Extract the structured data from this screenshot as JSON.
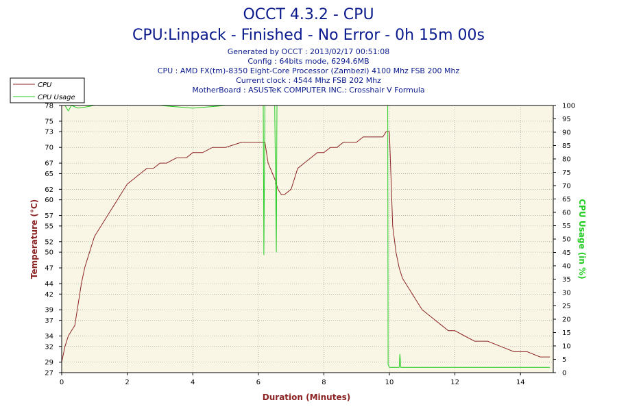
{
  "title": "OCCT 4.3.2 - CPU",
  "subtitle": "CPU:Linpack - Finished - No Error - 0h 15m 00s",
  "info_lines": [
    "Generated by OCCT : 2013/02/17 00:51:08",
    "Config : 64bits mode, 6294.6MB",
    "CPU : AMD FX(tm)-8350 Eight-Core Processor (Zambezi) 4100 Mhz FSB 200 Mhz",
    "Current clock : 4544 Mhz FSB 202 Mhz",
    "MotherBoard : ASUSTeK COMPUTER INC.: Crosshair V Formula"
  ],
  "colors": {
    "title": "#0a1a8c",
    "plot_background": "#faf6e6",
    "temperature": "#8b2323",
    "cpu_usage": "#22cc22",
    "grid": "#909090"
  },
  "chart_data": {
    "type": "line",
    "xlabel": "Duration (Minutes)",
    "ylabel": "Temperature (°C)",
    "y2label": "CPU Usage (in %)",
    "xlim": [
      0,
      15
    ],
    "ylim": [
      27,
      78
    ],
    "y2lim": [
      0,
      100
    ],
    "x_ticks": [
      0,
      2,
      4,
      6,
      8,
      10,
      12,
      14
    ],
    "y_ticks": [
      27,
      29,
      32,
      34,
      37,
      39,
      42,
      44,
      47,
      50,
      52,
      55,
      57,
      60,
      62,
      65,
      67,
      70,
      73,
      75,
      78
    ],
    "y2_ticks": [
      0,
      5,
      10,
      15,
      20,
      25,
      30,
      35,
      40,
      45,
      50,
      55,
      60,
      65,
      70,
      75,
      80,
      85,
      90,
      95,
      100
    ],
    "grid": true,
    "legend_position": "top-left",
    "series": [
      {
        "name": "CPU",
        "axis": "left",
        "x": [
          0,
          0.1,
          0.2,
          0.3,
          0.4,
          0.5,
          0.6,
          0.7,
          0.8,
          0.9,
          1.0,
          1.1,
          1.2,
          1.3,
          1.4,
          1.5,
          1.6,
          1.7,
          1.8,
          1.9,
          2.0,
          2.2,
          2.4,
          2.6,
          2.8,
          3.0,
          3.2,
          3.5,
          3.8,
          4.0,
          4.3,
          4.6,
          5.0,
          5.5,
          5.8,
          6.0,
          6.2,
          6.3,
          6.5,
          6.6,
          6.7,
          6.8,
          7.0,
          7.1,
          7.2,
          7.4,
          7.6,
          7.8,
          8.0,
          8.2,
          8.4,
          8.6,
          8.8,
          9.0,
          9.2,
          9.4,
          9.6,
          9.8,
          9.9,
          10.0,
          10.1,
          10.2,
          10.3,
          10.4,
          10.5,
          10.6,
          10.7,
          10.8,
          10.9,
          11.0,
          11.2,
          11.4,
          11.6,
          11.8,
          12.0,
          12.3,
          12.6,
          13.0,
          13.4,
          13.8,
          14.2,
          14.6,
          14.9
        ],
        "y": [
          29,
          32,
          34,
          35,
          36,
          40,
          44,
          47,
          49,
          51,
          53,
          54,
          55,
          56,
          57,
          58,
          59,
          60,
          61,
          62,
          63,
          64,
          65,
          66,
          66,
          67,
          67,
          68,
          68,
          69,
          69,
          70,
          70,
          71,
          71,
          71,
          71,
          67,
          64,
          62,
          61,
          61,
          62,
          64,
          66,
          67,
          68,
          69,
          69,
          70,
          70,
          71,
          71,
          71,
          72,
          72,
          72,
          72,
          73,
          73,
          55,
          50,
          47,
          45,
          44,
          43,
          42,
          41,
          40,
          39,
          38,
          37,
          36,
          35,
          35,
          34,
          33,
          33,
          32,
          31,
          31,
          30,
          30
        ]
      },
      {
        "name": "CPU Usage",
        "axis": "right",
        "x": [
          0,
          0.1,
          0.2,
          0.3,
          0.5,
          1.0,
          2.0,
          3.0,
          4.0,
          5.0,
          6.0,
          6.15,
          6.17,
          6.2,
          6.23,
          6.3,
          6.5,
          6.55,
          6.57,
          6.6,
          6.63,
          6.7,
          7.0,
          8.0,
          9.0,
          9.9,
          9.95,
          9.96,
          10.0,
          10.2,
          10.3,
          10.32,
          10.35,
          10.5,
          11.0,
          12.0,
          13.0,
          14.0,
          14.9
        ],
        "y": [
          100,
          100,
          98,
          100,
          99,
          100,
          100,
          100,
          99,
          100,
          100,
          100,
          44,
          100,
          100,
          100,
          100,
          45,
          100,
          100,
          100,
          100,
          100,
          100,
          100,
          100,
          100,
          3,
          2,
          2,
          2,
          7,
          2,
          2,
          2,
          2,
          2,
          2,
          2
        ]
      }
    ]
  }
}
